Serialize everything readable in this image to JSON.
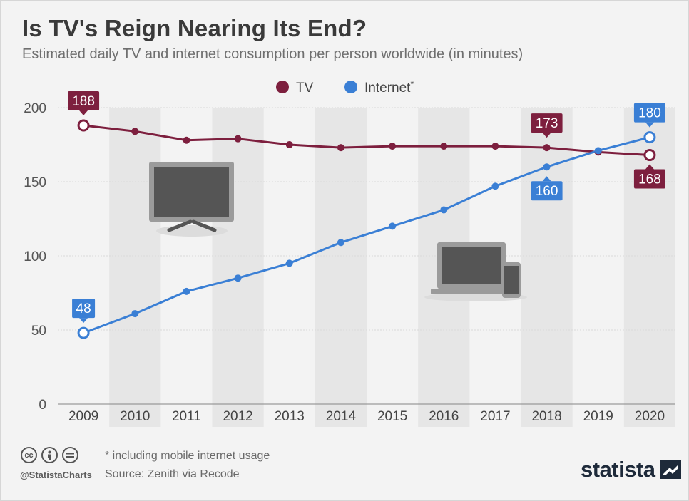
{
  "title": "Is TV's Reign Nearing Its End?",
  "subtitle": "Estimated daily TV and internet consumption per person worldwide (in minutes)",
  "footnote": "* including mobile internet usage",
  "source": "Source: Zenith via Recode",
  "handle": "@StatistaCharts",
  "brand": "statista",
  "license_icons": [
    "cc-icon",
    "by-icon",
    "nd-icon"
  ],
  "illustrations": [
    "tv-icon",
    "laptop-phone-icon"
  ],
  "colors": {
    "tv": "#7d1f3e",
    "internet": "#3a7fd5",
    "band": "#e6e6e6",
    "background": "#f3f3f3"
  },
  "chart_data": {
    "type": "line",
    "title": "Is TV's Reign Nearing Its End?",
    "subtitle": "Estimated daily TV and internet consumption per person worldwide (in minutes)",
    "x": [
      "2009",
      "2010",
      "2011",
      "2012",
      "2013",
      "2014",
      "2015",
      "2016",
      "2017",
      "2018",
      "2019",
      "2020"
    ],
    "y_ticks": [
      "0",
      "50",
      "100",
      "150",
      "200"
    ],
    "ylim": [
      0,
      200
    ],
    "grid": true,
    "legend": "top-center",
    "series": [
      {
        "name": "TV",
        "legend_label": "TV",
        "color": "#7d1f3e",
        "values": [
          188,
          184,
          178,
          179,
          175,
          173,
          174,
          174,
          174,
          173,
          170,
          168
        ],
        "labels": [
          {
            "index": 0,
            "text": "188",
            "pos": "above"
          },
          {
            "index": 9,
            "text": "173",
            "pos": "above"
          },
          {
            "index": 11,
            "text": "168",
            "pos": "below"
          }
        ]
      },
      {
        "name": "Internet",
        "legend_label": "Internet*",
        "color": "#3a7fd5",
        "values": [
          48,
          61,
          76,
          85,
          95,
          109,
          120,
          131,
          147,
          160,
          171,
          180
        ],
        "labels": [
          {
            "index": 0,
            "text": "48",
            "pos": "above"
          },
          {
            "index": 9,
            "text": "160",
            "pos": "below"
          },
          {
            "index": 11,
            "text": "180",
            "pos": "above"
          }
        ]
      }
    ]
  }
}
